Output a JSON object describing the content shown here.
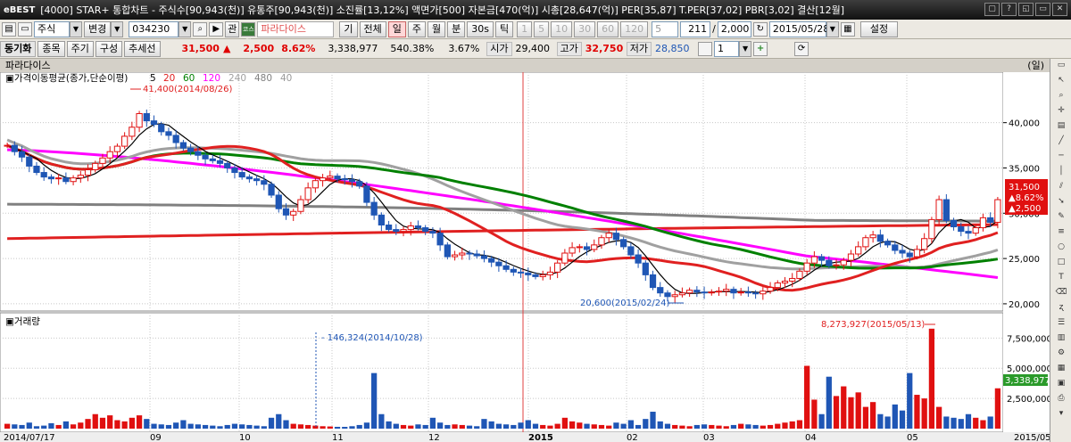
{
  "window": {
    "logo": "eBEST",
    "title": "[4000] STAR+ 통합차트 - 주식수[90,943(천)] 유통주[90,943(천)] 소진률[13,12%] 액면가[500] 자본금[470(억)] 시총[28,647(억)] PER[35,87] T.PER[37,02] PBR[3,02] 결산[12월]",
    "buttons": [
      "▢",
      "?",
      "◱",
      "▭",
      "✕"
    ]
  },
  "toolbar1": {
    "market": "주식",
    "change": "변경",
    "code": "034230",
    "rel": "관",
    "badge": "코스닥",
    "name": "파라다이스",
    "tabs": [
      "기",
      "전체",
      "일",
      "주",
      "월",
      "분",
      "30s",
      "틱"
    ],
    "minute_opts": [
      "1",
      "5",
      "10",
      "30",
      "60",
      "120"
    ],
    "count_pre": "5",
    "count": "211",
    "count_total": "2,000",
    "date": "2015/05/28",
    "settings": "설정"
  },
  "toolbar2": {
    "sync": "동기화",
    "tabs": [
      "종목",
      "주기",
      "구성",
      "추세선"
    ],
    "price": "31,500",
    "change_sign": "▲",
    "change": "2,500",
    "change_pct": "8.62%",
    "volume": "3,338,977",
    "vol_ratio": "540.38%",
    "turnover": "3.67%",
    "open_label": "시가",
    "open": "29,400",
    "high_label": "고가",
    "high": "32,750",
    "low_label": "저가",
    "low": "28,850",
    "page": "1"
  },
  "chart": {
    "stock_name": "파라다이스",
    "unit_label": "(일)",
    "ma_label": "가격이동평균(종가,단순이평)",
    "ma_periods": [
      "5",
      "20",
      "60",
      "120",
      "240",
      "480",
      "40"
    ],
    "ma_colors": [
      "#000000",
      "#e02020",
      "#008000",
      "#ff00ff",
      "#a0a0a0",
      "#808080",
      "#999999"
    ],
    "price_axis": [
      "40,000",
      "35,000",
      "30,000",
      "25,000",
      "20,000"
    ],
    "price_range": [
      19500,
      44000
    ],
    "high_annot": "41,400(2014/08/26)",
    "low_annot": "20,600(2015/02/24)",
    "current_tag": [
      "31,500",
      "▲8.62%",
      "▲2,500"
    ],
    "volume_label": "거래량",
    "volume_axis": [
      "7,500,000",
      "5,000,000",
      "2,500,000"
    ],
    "volume_max_annot": "8,273,927(2015/05/13)",
    "volume_mark_annot": "146,324(2014/10/28)",
    "volume_current_tag": "3,338,977",
    "x_labels": [
      "2014/07/17",
      "09",
      "10",
      "11",
      "12",
      "2015",
      "02",
      "03",
      "04",
      "05",
      "2015/05/28"
    ]
  },
  "chart_data": {
    "type": "candlestick",
    "x_start": "2014/07/17",
    "x_end": "2015/05/28",
    "ylim": [
      19500,
      44000
    ],
    "volume_max": 9000000,
    "close_series": [
      37500,
      36800,
      36200,
      35200,
      34500,
      34000,
      33800,
      33900,
      33500,
      33900,
      34200,
      34800,
      35500,
      36100,
      36800,
      37400,
      38500,
      39500,
      41000,
      40200,
      39800,
      39000,
      38600,
      37800,
      37200,
      36800,
      36400,
      36000,
      35800,
      35500,
      35000,
      34500,
      34000,
      33800,
      33600,
      33200,
      32000,
      30500,
      29800,
      30200,
      31500,
      32800,
      33600,
      33900,
      34100,
      33800,
      33700,
      33500,
      33000,
      31200,
      29800,
      28700,
      28200,
      28000,
      28200,
      28600,
      28400,
      28000,
      27800,
      26500,
      25200,
      25400,
      25600,
      25500,
      25300,
      25000,
      24600,
      24200,
      23800,
      23500,
      23400,
      23200,
      23000,
      23200,
      23500,
      24500,
      25600,
      26200,
      26300,
      26000,
      26500,
      27300,
      27800,
      27100,
      26300,
      25400,
      24500,
      23200,
      21800,
      21200,
      20800,
      21000,
      21200,
      21500,
      21300,
      21200,
      21300,
      21400,
      21600,
      21200,
      21300,
      21200,
      21100,
      21400,
      21800,
      22300,
      22500,
      22800,
      23600,
      24500,
      25200,
      24800,
      24200,
      24300,
      24800,
      25500,
      26300,
      27300,
      27600,
      26900,
      26500,
      25900,
      25600,
      25200,
      26000,
      27200,
      29300,
      31500,
      29200,
      28500,
      28000,
      27800,
      28400,
      29500,
      29000,
      31500
    ],
    "volume_series": [
      400000,
      350000,
      300000,
      500000,
      200000,
      250000,
      450000,
      300000,
      600000,
      350000,
      500000,
      800000,
      1200000,
      900000,
      1100000,
      700000,
      600000,
      900000,
      1100000,
      800000,
      400000,
      350000,
      300000,
      500000,
      700000,
      400000,
      350000,
      300000,
      250000,
      200000,
      300000,
      400000,
      350000,
      300000,
      250000,
      200000,
      900000,
      1200000,
      700000,
      400000,
      350000,
      300000,
      250000,
      200000,
      180000,
      150000,
      146324,
      200000,
      300000,
      500000,
      4600000,
      1200000,
      600000,
      400000,
      300000,
      250000,
      350000,
      300000,
      900000,
      500000,
      300000,
      350000,
      300000,
      250000,
      200000,
      800000,
      600000,
      400000,
      350000,
      300000,
      500000,
      700000,
      400000,
      300000,
      250000,
      400000,
      900000,
      600000,
      500000,
      400000,
      350000,
      300000,
      250000,
      500000,
      400000,
      700000,
      300000,
      800000,
      1400000,
      600000,
      400000,
      300000,
      250000,
      200000,
      300000,
      350000,
      300000,
      250000,
      200000,
      300000,
      400000,
      350000,
      300000,
      250000,
      300000,
      400000,
      500000,
      600000,
      700000,
      5200000,
      2400000,
      1200000,
      4300000,
      2700000,
      3500000,
      2600000,
      3000000,
      1800000,
      2200000,
      1200000,
      1000000,
      2000000,
      1500000,
      4600000,
      2800000,
      2500000,
      8273927,
      1800000,
      1000000,
      900000,
      800000,
      1200000,
      900000,
      700000,
      1000000,
      3338977
    ]
  }
}
